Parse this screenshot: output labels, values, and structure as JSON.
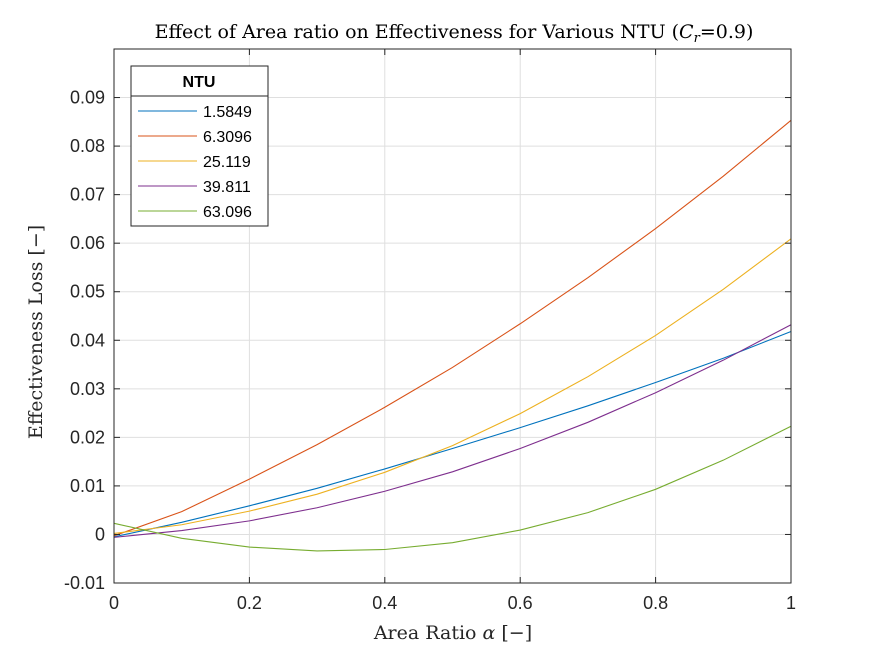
{
  "chart_data": {
    "type": "line",
    "title_prefix": "Effect of Area ratio on Effectiveness for Various NTU (",
    "title_var": "C",
    "title_sub": "r",
    "title_suffix": "=0.9)",
    "xlabel_text": "Area Ratio ",
    "xlabel_symbol": "α",
    "xlabel_unit": " [−]",
    "ylabel": "Effectiveness Loss [−]",
    "xlim": [
      0,
      1
    ],
    "ylim": [
      -0.01,
      0.1
    ],
    "xticks": [
      0,
      0.2,
      0.4,
      0.6,
      0.8,
      1
    ],
    "xtick_labels": [
      "0",
      "0.2",
      "0.4",
      "0.6",
      "0.8",
      "1"
    ],
    "yticks": [
      -0.01,
      0,
      0.01,
      0.02,
      0.03,
      0.04,
      0.05,
      0.06,
      0.07,
      0.08,
      0.09
    ],
    "ytick_labels": [
      "-0.01",
      "0",
      "0.01",
      "0.02",
      "0.03",
      "0.04",
      "0.05",
      "0.06",
      "0.07",
      "0.08",
      "0.09"
    ],
    "grid": true,
    "legend_title": "NTU",
    "legend_location": "top-left",
    "x": [
      0,
      0.1,
      0.2,
      0.3,
      0.4,
      0.5,
      0.6,
      0.7,
      0.8,
      0.9,
      1
    ],
    "series": [
      {
        "name": "1.5849",
        "color": "#0072BD",
        "values": [
          -0.0005,
          0.0025,
          0.0059,
          0.0095,
          0.0135,
          0.0177,
          0.022,
          0.0265,
          0.0313,
          0.0363,
          0.0418
        ]
      },
      {
        "name": "6.3096",
        "color": "#D95319",
        "values": [
          -0.0003,
          0.0047,
          0.0114,
          0.0185,
          0.0262,
          0.0344,
          0.0434,
          0.0529,
          0.063,
          0.0738,
          0.0853
        ]
      },
      {
        "name": "25.119",
        "color": "#EDB120",
        "values": [
          0.0002,
          0.002,
          0.0048,
          0.0083,
          0.0128,
          0.0183,
          0.0249,
          0.0325,
          0.041,
          0.0505,
          0.0609
        ]
      },
      {
        "name": "39.811",
        "color": "#7E2F8E",
        "values": [
          -0.0006,
          0.0008,
          0.0028,
          0.0055,
          0.0089,
          0.0129,
          0.0177,
          0.0231,
          0.0292,
          0.0359,
          0.0432
        ]
      },
      {
        "name": "63.096",
        "color": "#77AC30",
        "values": [
          0.0023,
          -0.0008,
          -0.0026,
          -0.0034,
          -0.0031,
          -0.0017,
          0.0009,
          0.0045,
          0.0093,
          0.0153,
          0.0223
        ]
      }
    ]
  }
}
